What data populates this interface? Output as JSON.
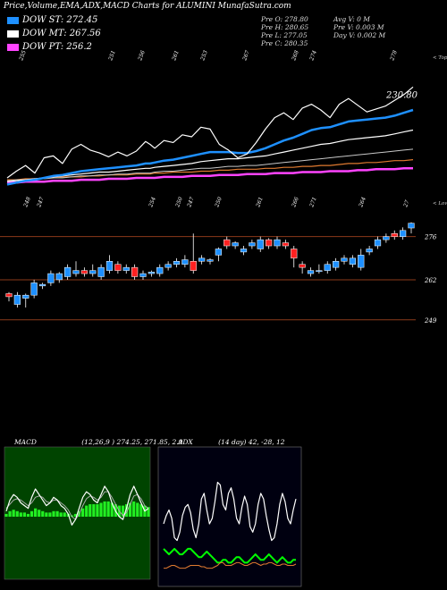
{
  "title": "Price,Volume,EMA,ADX,MACD Charts for ALUMINI MunafaSutra.com",
  "dow": [
    {
      "label": "DOW ST: 272.45",
      "color": "#1e90ff"
    },
    {
      "label": "DOW MT: 267.56",
      "color": "#ffffff"
    },
    {
      "label": "DOW PT: 256.2",
      "color": "#ff44ff"
    }
  ],
  "ohlc": {
    "pre_o": "Pre  O: 278.80",
    "pre_h": "Pre  H: 280.65",
    "pre_l": "Pre  L: 277.05",
    "pre_c": "Pre  C: 280.35",
    "avg_v": "Avg V: 0  M",
    "pre_v": "Pre  V: 0.003  M",
    "day_v": "Day V: 0.002  M"
  },
  "labels": {
    "tops": "< Tops",
    "lows": "< Lows",
    "ema_last": "230.80"
  },
  "chart_data": [
    {
      "type": "line",
      "name": "ema-panel",
      "x": [
        0,
        1,
        2,
        3,
        4,
        5,
        6,
        7,
        8,
        9,
        10,
        11,
        12,
        13,
        14,
        15,
        15.5,
        16,
        17,
        18,
        19,
        20,
        21,
        22,
        23,
        24,
        25,
        26,
        27,
        28,
        29,
        30,
        31,
        32,
        33,
        34,
        35,
        36,
        37,
        38,
        39,
        40,
        41,
        42,
        43,
        44
      ],
      "series": [
        {
          "name": "close",
          "color": "#ffffff",
          "values": [
            175,
            182,
            188,
            180,
            196,
            198,
            190,
            205,
            210,
            204,
            201,
            197,
            202,
            198,
            203,
            213,
            210,
            206,
            214,
            212,
            220,
            218,
            228,
            226,
            210,
            204,
            196,
            200,
            212,
            226,
            238,
            243,
            236,
            248,
            252,
            246,
            238,
            252,
            258,
            251,
            244,
            247,
            250,
            256,
            262,
            270
          ]
        },
        {
          "name": "ema_fast",
          "color": "#1e90ff",
          "values": [
            168,
            170,
            172,
            173,
            175,
            177,
            178,
            180,
            182,
            183,
            184,
            185,
            186,
            187,
            188,
            190,
            190,
            191,
            193,
            194,
            196,
            198,
            200,
            202,
            202,
            202,
            201,
            201,
            203,
            206,
            210,
            214,
            217,
            221,
            225,
            227,
            228,
            231,
            234,
            235,
            236,
            237,
            238,
            240,
            243,
            246
          ]
        },
        {
          "name": "ema_mid",
          "color": "#ffffff",
          "values": [
            171,
            172,
            173,
            174,
            175,
            176,
            177,
            178,
            179,
            180,
            181,
            181,
            182,
            183,
            184,
            185,
            185,
            186,
            187,
            188,
            189,
            190,
            192,
            193,
            194,
            195,
            195,
            196,
            197,
            198,
            200,
            202,
            204,
            206,
            208,
            210,
            211,
            213,
            215,
            216,
            217,
            218,
            219,
            221,
            223,
            225
          ]
        },
        {
          "name": "ema_slow",
          "color": "#c8c8c8",
          "values": [
            172,
            173,
            173,
            174,
            174,
            175,
            175,
            176,
            177,
            177,
            178,
            178,
            179,
            179,
            180,
            180,
            180,
            181,
            182,
            182,
            183,
            184,
            185,
            185,
            186,
            187,
            187,
            188,
            188,
            189,
            190,
            191,
            192,
            193,
            194,
            195,
            196,
            197,
            198,
            199,
            200,
            201,
            202,
            203,
            204,
            205
          ]
        },
        {
          "name": "ema_long",
          "color": "#e07a30",
          "values": [
            173,
            173,
            174,
            174,
            175,
            175,
            176,
            176,
            176,
            177,
            177,
            178,
            178,
            178,
            179,
            179,
            179,
            180,
            180,
            181,
            181,
            181,
            182,
            182,
            183,
            183,
            184,
            184,
            184,
            185,
            185,
            186,
            186,
            187,
            187,
            188,
            188,
            189,
            190,
            190,
            191,
            191,
            192,
            193,
            193,
            194
          ]
        },
        {
          "name": "ema_xlong",
          "color": "#ff44ff",
          "values": [
            170,
            170,
            171,
            171,
            171,
            172,
            172,
            172,
            173,
            173,
            173,
            174,
            174,
            174,
            175,
            175,
            175,
            175,
            176,
            176,
            176,
            177,
            177,
            177,
            178,
            178,
            178,
            179,
            179,
            179,
            180,
            180,
            180,
            181,
            181,
            181,
            182,
            182,
            182,
            183,
            183,
            184,
            184,
            184,
            185,
            185
          ]
        }
      ],
      "top_tick_labels": [
        "255",
        "251",
        "256",
        "261",
        "253",
        "267",
        "268",
        "274",
        "278"
      ],
      "bottom_tick_labels": [
        "248",
        "247",
        "254",
        "250",
        "247",
        "250",
        "261",
        "266",
        "271",
        "264",
        "27"
      ]
    },
    {
      "type": "candlestick",
      "name": "price-panel",
      "y_levels": [
        {
          "value": 276,
          "label": "276"
        },
        {
          "value": 262,
          "label": "262"
        },
        {
          "value": 249,
          "label": "249"
        }
      ],
      "ylim": [
        244,
        282
      ],
      "candles": [
        {
          "o": 257.5,
          "c": 256.5,
          "h": 258,
          "l": 255
        },
        {
          "o": 254,
          "c": 257,
          "h": 258,
          "l": 253
        },
        {
          "o": 256,
          "c": 257,
          "h": 257.5,
          "l": 253
        },
        {
          "o": 257,
          "c": 261,
          "h": 262,
          "l": 256
        },
        {
          "o": 260,
          "c": 260.5,
          "h": 261,
          "l": 259
        },
        {
          "o": 261,
          "c": 264,
          "h": 265,
          "l": 260
        },
        {
          "o": 262,
          "c": 264,
          "h": 264.5,
          "l": 261
        },
        {
          "o": 263,
          "c": 266,
          "h": 267,
          "l": 262
        },
        {
          "o": 264,
          "c": 265,
          "h": 268,
          "l": 263
        },
        {
          "o": 265,
          "c": 264,
          "h": 266,
          "l": 263
        },
        {
          "o": 264,
          "c": 265,
          "h": 267,
          "l": 263
        },
        {
          "o": 263,
          "c": 266,
          "h": 267,
          "l": 262
        },
        {
          "o": 265,
          "c": 268,
          "h": 270,
          "l": 264
        },
        {
          "o": 267,
          "c": 265,
          "h": 268,
          "l": 264
        },
        {
          "o": 265,
          "c": 266,
          "h": 267,
          "l": 264
        },
        {
          "o": 266,
          "c": 263,
          "h": 267,
          "l": 262
        },
        {
          "o": 263,
          "c": 264,
          "h": 265,
          "l": 262
        },
        {
          "o": 264,
          "c": 264.5,
          "h": 265,
          "l": 263
        },
        {
          "o": 264,
          "c": 266,
          "h": 267,
          "l": 263
        },
        {
          "o": 266,
          "c": 267,
          "h": 268,
          "l": 265
        },
        {
          "o": 267,
          "c": 268,
          "h": 269,
          "l": 266
        },
        {
          "o": 267,
          "c": 268.5,
          "h": 270,
          "l": 266
        },
        {
          "o": 268,
          "c": 265,
          "h": 277,
          "l": 264
        },
        {
          "o": 268,
          "c": 269,
          "h": 270,
          "l": 267
        },
        {
          "o": 268,
          "c": 268.5,
          "h": 269,
          "l": 267
        },
        {
          "o": 270,
          "c": 272,
          "h": 272.5,
          "l": 268
        },
        {
          "o": 275,
          "c": 273,
          "h": 276,
          "l": 272
        },
        {
          "o": 273,
          "c": 274,
          "h": 274.5,
          "l": 272
        },
        {
          "o": 271,
          "c": 272,
          "h": 273,
          "l": 270
        },
        {
          "o": 273,
          "c": 274,
          "h": 275,
          "l": 272
        },
        {
          "o": 272,
          "c": 275,
          "h": 276,
          "l": 271
        },
        {
          "o": 275,
          "c": 273,
          "h": 275.5,
          "l": 272
        },
        {
          "o": 273,
          "c": 275,
          "h": 276,
          "l": 272
        },
        {
          "o": 274,
          "c": 273,
          "h": 275,
          "l": 272
        },
        {
          "o": 272,
          "c": 269,
          "h": 273,
          "l": 266
        },
        {
          "o": 267,
          "c": 266,
          "h": 268,
          "l": 264
        },
        {
          "o": 264,
          "c": 265,
          "h": 266,
          "l": 263
        },
        {
          "o": 265,
          "c": 265,
          "h": 267,
          "l": 264
        },
        {
          "o": 265,
          "c": 267,
          "h": 268,
          "l": 264
        },
        {
          "o": 266,
          "c": 268,
          "h": 269,
          "l": 265
        },
        {
          "o": 268,
          "c": 269,
          "h": 270,
          "l": 267
        },
        {
          "o": 267,
          "c": 269,
          "h": 270,
          "l": 266
        },
        {
          "o": 266,
          "c": 270,
          "h": 272,
          "l": 265
        },
        {
          "o": 271,
          "c": 272,
          "h": 273,
          "l": 270
        },
        {
          "o": 273,
          "c": 275,
          "h": 276,
          "l": 272
        },
        {
          "o": 275,
          "c": 276,
          "h": 277,
          "l": 274
        },
        {
          "o": 277,
          "c": 276,
          "h": 278,
          "l": 275
        },
        {
          "o": 276,
          "c": 278,
          "h": 279,
          "l": 275
        },
        {
          "o": 278.8,
          "c": 280.35,
          "h": 280.65,
          "l": 277.05
        }
      ]
    },
    {
      "type": "line",
      "name": "macd-panel",
      "header": "MACD",
      "values_text": "(12,26,9 ) 274.25,  271.85,  2.9",
      "x": [
        0,
        1,
        2,
        3,
        4,
        5,
        6,
        7,
        8,
        9,
        10,
        11,
        12,
        13,
        14,
        15,
        16,
        17,
        18,
        19,
        20,
        21,
        22,
        23,
        24,
        25,
        26,
        27,
        28,
        29,
        30,
        31,
        32,
        33,
        34,
        35,
        36,
        37,
        38,
        39
      ],
      "series": [
        {
          "name": "macd",
          "color": "#ffffff",
          "values": [
            4,
            12,
            16,
            14,
            10,
            8,
            6,
            14,
            20,
            16,
            12,
            8,
            10,
            14,
            12,
            8,
            6,
            2,
            -6,
            -2,
            6,
            14,
            18,
            16,
            12,
            10,
            16,
            22,
            18,
            10,
            4,
            0,
            -2,
            6,
            16,
            22,
            16,
            10,
            4,
            6
          ]
        },
        {
          "name": "signal",
          "color": "#aaaaaa",
          "values": [
            6,
            9,
            12,
            13,
            12,
            10,
            8,
            10,
            14,
            15,
            14,
            11,
            10,
            12,
            12,
            10,
            8,
            5,
            0,
            -2,
            2,
            8,
            13,
            15,
            14,
            12,
            14,
            18,
            18,
            14,
            9,
            4,
            1,
            3,
            9,
            15,
            16,
            13,
            8,
            6
          ]
        }
      ],
      "histogram": [
        2,
        4,
        5,
        4,
        3,
        3,
        2,
        4,
        6,
        5,
        4,
        3,
        3,
        4,
        4,
        3,
        3,
        2,
        1,
        2,
        4,
        6,
        8,
        9,
        9,
        9,
        10,
        11,
        11,
        10,
        9,
        8,
        8,
        9,
        10,
        11,
        10,
        9,
        8,
        7
      ]
    },
    {
      "type": "line",
      "name": "adx-panel",
      "header": "ADX",
      "values_text": "(14 day) 42, -28, 12",
      "x": [
        0,
        1,
        2,
        3,
        4,
        5,
        6,
        7,
        8,
        9,
        10,
        11,
        12,
        13,
        14,
        15,
        16,
        17,
        18,
        19,
        20,
        21,
        22,
        23,
        24,
        25,
        26,
        27,
        28,
        29,
        30,
        31,
        32,
        33,
        34,
        35,
        36,
        37,
        38,
        39,
        40,
        41,
        42,
        43,
        44,
        45,
        46,
        47,
        48,
        49
      ],
      "series": [
        {
          "name": "dx",
          "color": "#ffffff",
          "values": [
            40,
            46,
            50,
            44,
            30,
            28,
            34,
            46,
            52,
            54,
            48,
            36,
            30,
            40,
            58,
            62,
            50,
            40,
            44,
            56,
            70,
            68,
            54,
            50,
            62,
            66,
            58,
            44,
            40,
            52,
            60,
            54,
            38,
            34,
            40,
            54,
            62,
            58,
            46,
            36,
            28,
            30,
            40,
            54,
            62,
            56,
            44,
            40,
            50,
            58
          ]
        },
        {
          "name": "plus_di",
          "color": "#00ff00",
          "values": [
            22,
            20,
            18,
            20,
            22,
            20,
            18,
            18,
            20,
            22,
            22,
            20,
            18,
            16,
            16,
            18,
            20,
            18,
            16,
            14,
            12,
            12,
            14,
            14,
            12,
            12,
            14,
            16,
            16,
            14,
            12,
            12,
            14,
            16,
            18,
            16,
            14,
            14,
            16,
            18,
            16,
            14,
            12,
            14,
            16,
            14,
            12,
            12,
            14,
            14
          ]
        },
        {
          "name": "minus_di",
          "color": "#e07a30",
          "values": [
            8,
            8,
            9,
            10,
            10,
            9,
            8,
            8,
            8,
            9,
            10,
            10,
            10,
            10,
            9,
            9,
            8,
            8,
            8,
            9,
            10,
            12,
            12,
            10,
            10,
            10,
            11,
            12,
            12,
            11,
            10,
            10,
            11,
            12,
            12,
            11,
            10,
            11,
            11,
            12,
            12,
            11,
            10,
            10,
            11,
            11,
            10,
            10,
            10,
            11
          ]
        }
      ]
    }
  ]
}
